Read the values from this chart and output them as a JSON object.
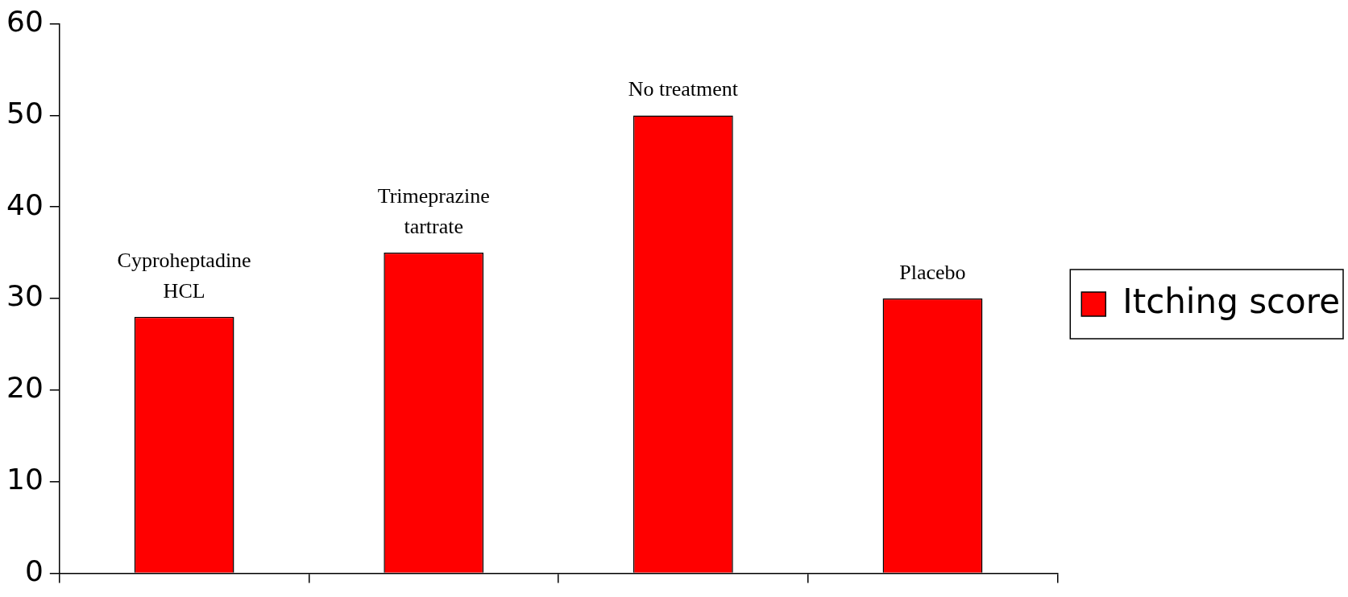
{
  "chart_data": {
    "type": "bar",
    "categories": [
      "Cyproheptadine HCL",
      "Trimeprazine tartrate",
      "No treatment",
      "Placebo"
    ],
    "series": [
      {
        "name": "Itching score",
        "color": "#ff0000",
        "values": [
          28,
          35,
          50,
          30
        ]
      }
    ],
    "ylim": [
      0,
      60
    ],
    "yticks": [
      0,
      10,
      20,
      30,
      40,
      50,
      60
    ],
    "grid": false,
    "legend": "right",
    "tick_labels": "y"
  }
}
